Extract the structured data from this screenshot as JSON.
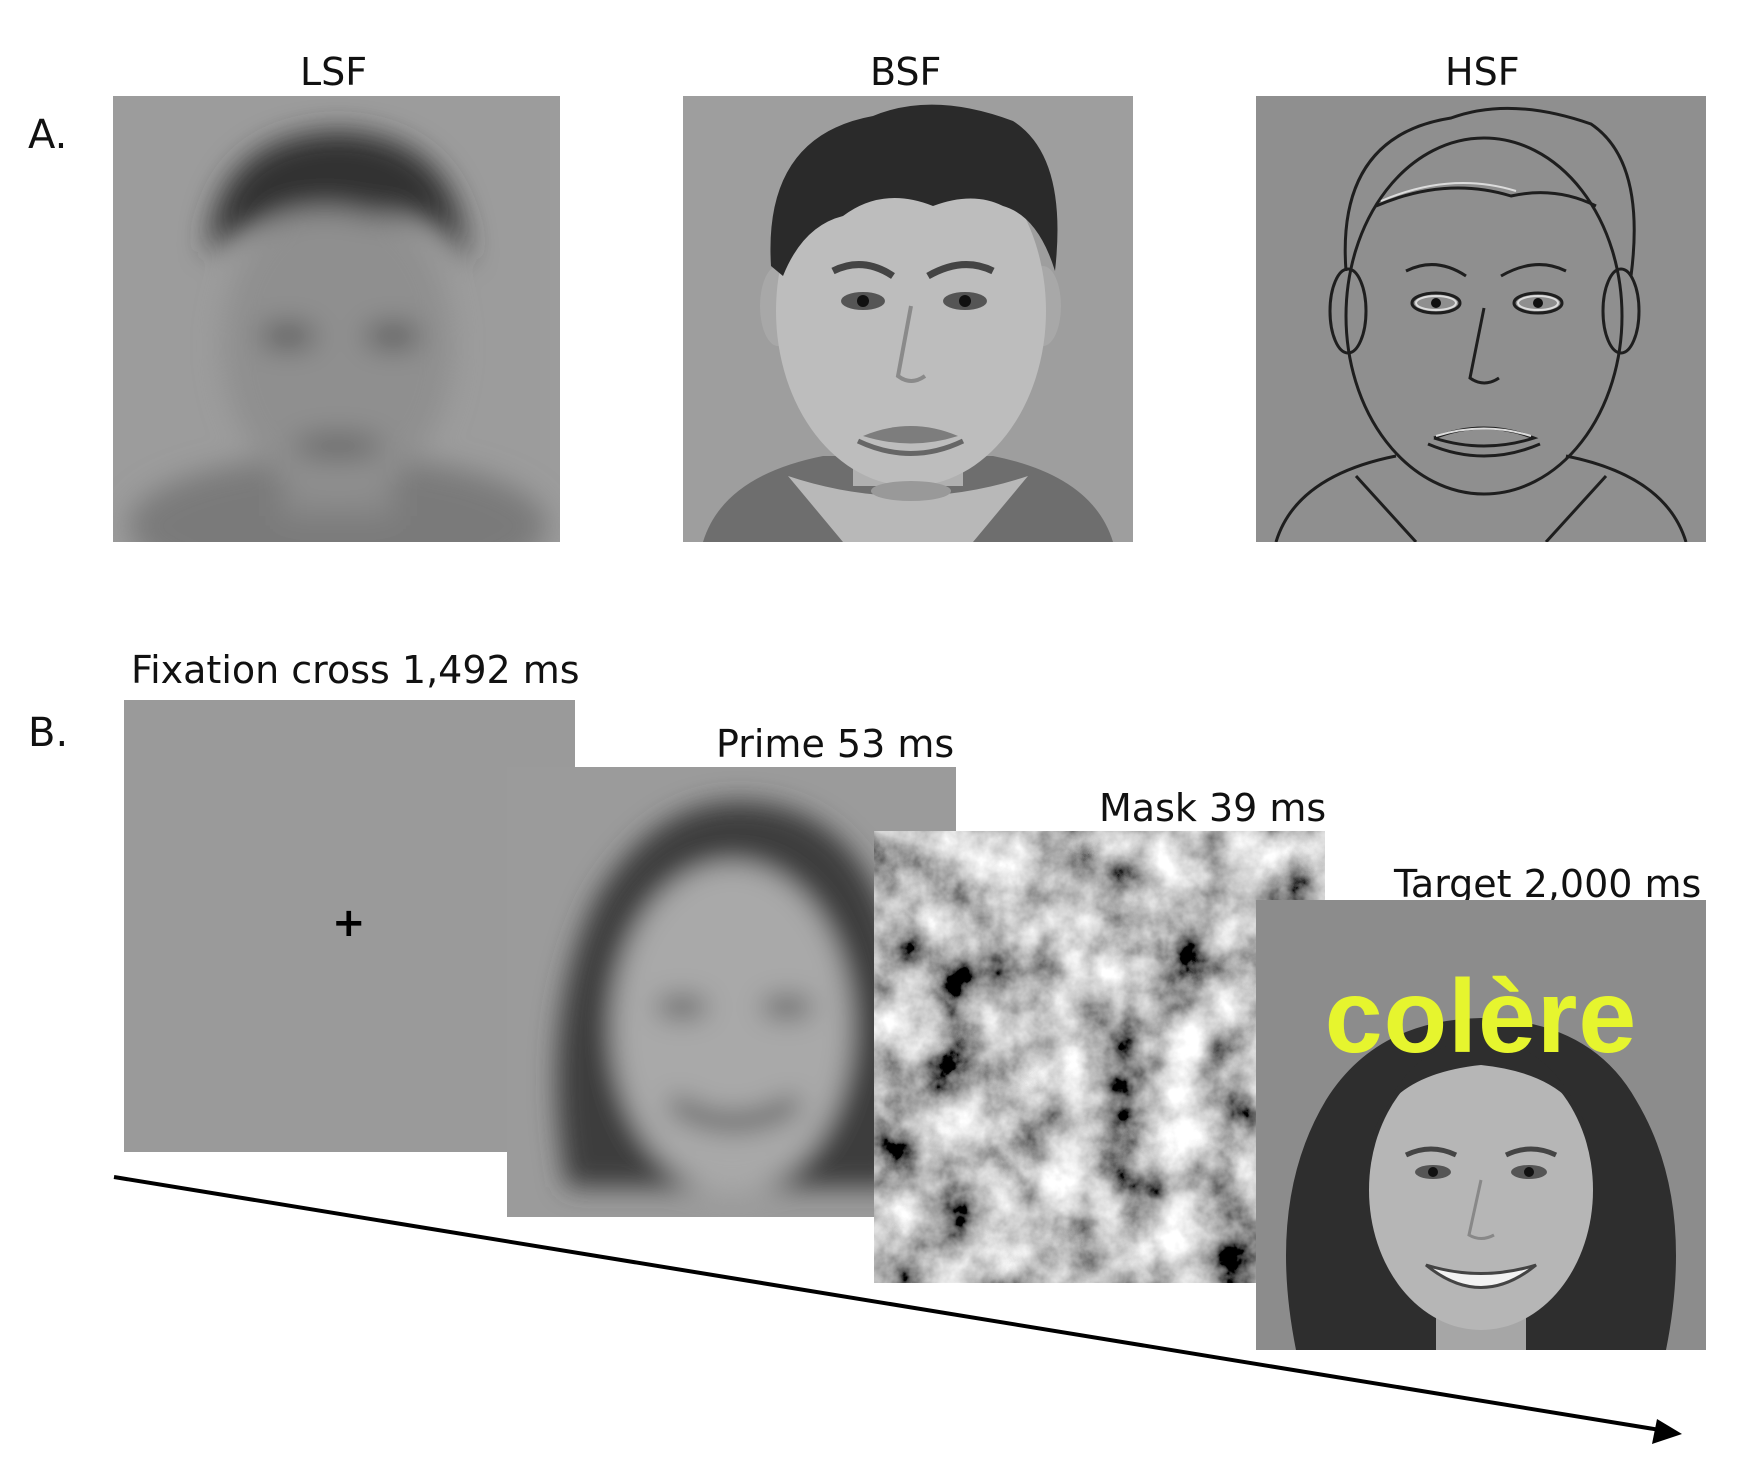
{
  "panel_a": {
    "letter": "A.",
    "labels": [
      "LSF",
      "BSF",
      "HSF"
    ]
  },
  "panel_b": {
    "letter": "B.",
    "fixation_label": "Fixation cross 1,492 ms",
    "fixation_symbol": "+",
    "prime_label": "Prime 53 ms",
    "mask_label": "Mask 39 ms",
    "target_label": "Target 2,000 ms",
    "target_word": "colère"
  },
  "colors": {
    "screen_gray": "#9a9a9a",
    "target_word": "#e6f52e",
    "arrow": "#000000"
  }
}
